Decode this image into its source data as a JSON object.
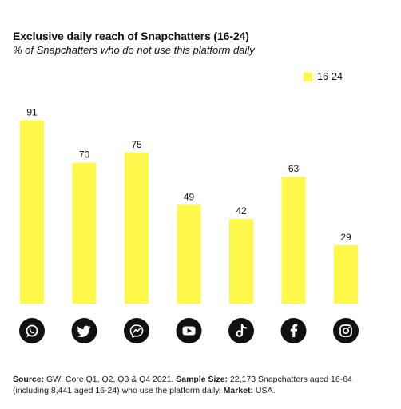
{
  "header": {
    "title": "Exclusive daily reach of Snapchatters (16-24)",
    "subtitle": "% of Snapchatters who do not use this platform daily"
  },
  "colors": {
    "bar": "#fdf84a",
    "icon_bg": "#111111",
    "icon_fg": "#ffffff",
    "label": "#111111"
  },
  "chart_data": {
    "type": "bar",
    "title": "Exclusive daily reach of Snapchatters (16-24)",
    "subtitle": "% of Snapchatters who do not use this platform daily",
    "categories": [
      "whatsapp-icon",
      "twitter-icon",
      "messenger-icon",
      "youtube-icon",
      "tiktok-icon",
      "facebook-icon",
      "instagram-icon"
    ],
    "series": [
      {
        "name": "16-24",
        "values": [
          91,
          70,
          75,
          49,
          42,
          63,
          29
        ]
      }
    ],
    "ylim": [
      0,
      100
    ],
    "grid": false,
    "legend": "top-right",
    "data_labels": true
  },
  "footer": {
    "source_label": "Source:",
    "source_text": " GWI Core Q1, Q2, Q3 & Q4 2021. ",
    "sample_label": "Sample Size:",
    "sample_text": " 22,173 Snapchatters aged 16-64 (including 8,441 aged 16-24) who use the platform daily. ",
    "market_label": "Market:",
    "market_text": " USA."
  }
}
